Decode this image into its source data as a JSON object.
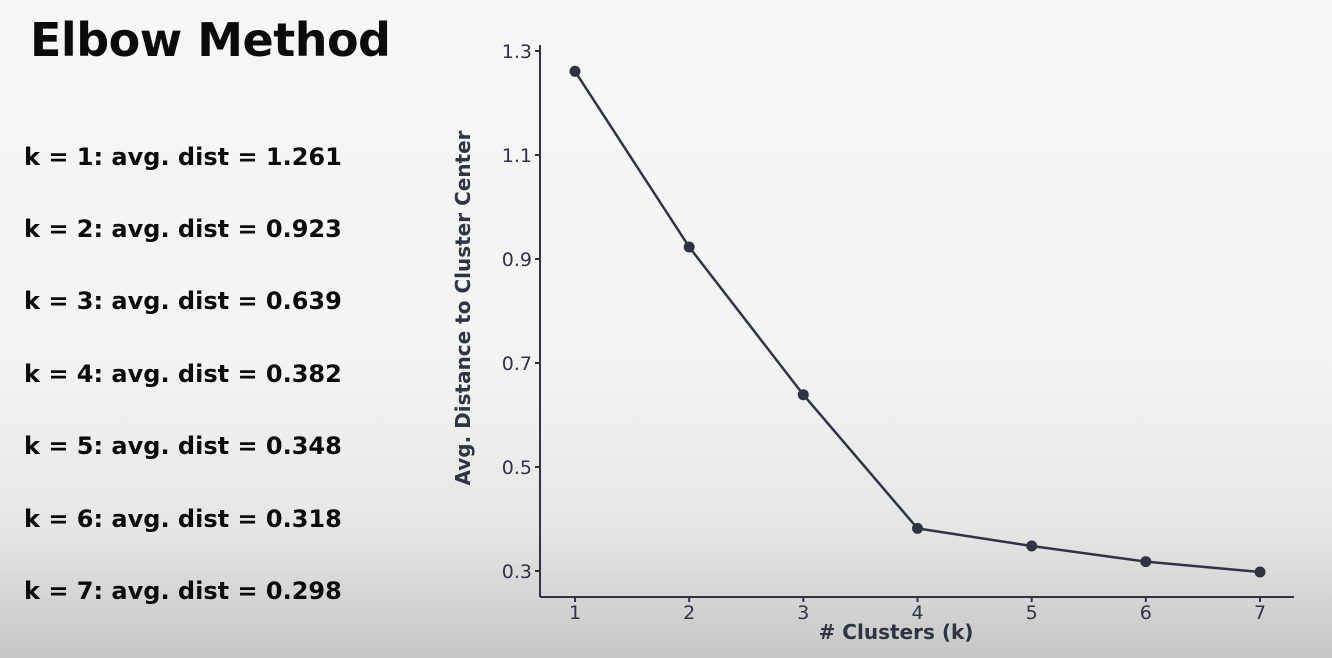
{
  "title": "Elbow Method",
  "stats": [
    "k = 1: avg. dist = 1.261",
    "k = 2: avg. dist = 0.923",
    "k = 3: avg. dist = 0.639",
    "k = 4: avg. dist = 0.382",
    "k = 5: avg. dist = 0.348",
    "k = 6: avg. dist = 0.318",
    "k = 7: avg. dist = 0.298"
  ],
  "chart_data": {
    "type": "line",
    "x": [
      1,
      2,
      3,
      4,
      5,
      6,
      7
    ],
    "y": [
      1.261,
      0.923,
      0.639,
      0.382,
      0.348,
      0.318,
      0.298
    ],
    "xlabel": "# Clusters (k)",
    "ylabel": "Avg. Distance to Cluster Center",
    "xticks": [
      "1",
      "2",
      "3",
      "4",
      "5",
      "6",
      "7"
    ],
    "yticks": [
      "0.3",
      "0.5",
      "0.7",
      "0.9",
      "1.1",
      "1.3"
    ],
    "ylim": [
      0.25,
      1.3
    ],
    "xlim": [
      0.7,
      7.3
    ],
    "grid": false,
    "line_color": "#2f3440"
  }
}
